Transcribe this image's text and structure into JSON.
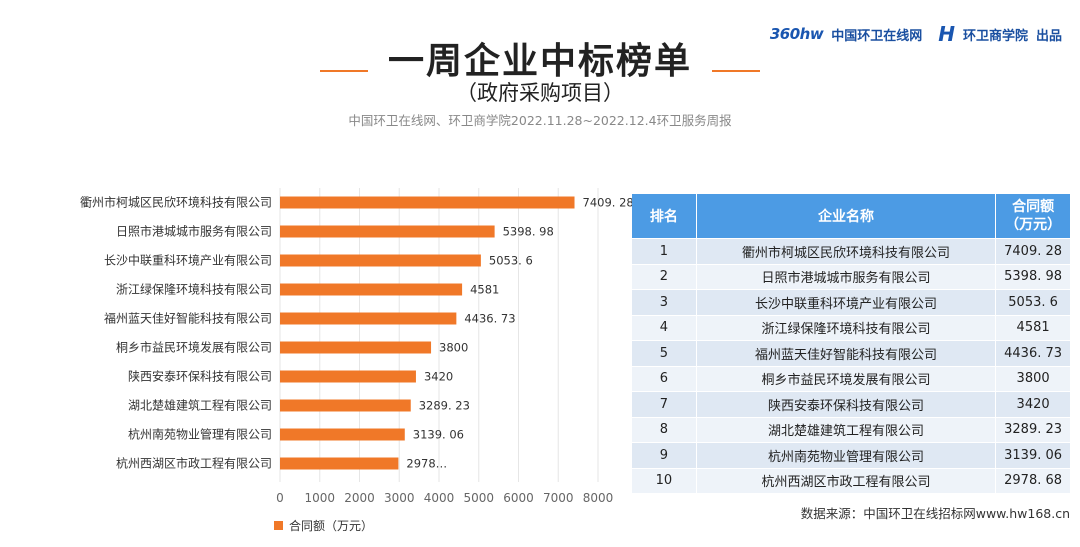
{
  "brand": {
    "logo_text": "360hw",
    "site_name": "中国环卫在线网",
    "school_name": "环卫商学院",
    "produced": "出品"
  },
  "header": {
    "title": "一周企业中标榜单",
    "subtitle": "（政府采购项目）",
    "source_line": "中国环卫在线网、环卫商学院2022.11.28~2022.12.4环卫服务周报"
  },
  "table": {
    "headers": [
      "排名",
      "企业名称",
      "合同额\n（万元）"
    ],
    "rows": [
      [
        "1",
        "衢州市柯城区民欣环境科技有限公司",
        "7409. 28"
      ],
      [
        "2",
        "日照市港城城市服务有限公司",
        "5398. 98"
      ],
      [
        "3",
        "长沙中联重科环境产业有限公司",
        "5053. 6"
      ],
      [
        "4",
        "浙江绿保隆环境科技有限公司",
        "4581"
      ],
      [
        "5",
        "福州蓝天佳好智能科技有限公司",
        "4436. 73"
      ],
      [
        "6",
        "桐乡市益民环境发展有限公司",
        "3800"
      ],
      [
        "7",
        "陕西安泰环保科技有限公司",
        "3420"
      ],
      [
        "8",
        "湖北楚雄建筑工程有限公司",
        "3289. 23"
      ],
      [
        "9",
        "杭州南苑物业管理有限公司",
        "3139. 06"
      ],
      [
        "10",
        "杭州西湖区市政工程有限公司",
        "2978. 68"
      ]
    ]
  },
  "footnote": "数据来源：中国环卫在线招标网www.hw168.cn",
  "chart_data": {
    "type": "bar",
    "orientation": "horizontal",
    "categories": [
      "衢州市柯城区民欣环境科技有限公司",
      "日照市港城城市服务有限公司",
      "长沙中联重科环境产业有限公司",
      "浙江绿保隆环境科技有限公司",
      "福州蓝天佳好智能科技有限公司",
      "桐乡市益民环境发展有限公司",
      "陕西安泰环保科技有限公司",
      "湖北楚雄建筑工程有限公司",
      "杭州南苑物业管理有限公司",
      "杭州西湖区市政工程有限公司"
    ],
    "values": [
      7409.28,
      5398.98,
      5053.6,
      4581,
      4436.73,
      3800,
      3420,
      3289.23,
      3139.06,
      2978.68
    ],
    "value_labels": [
      "7409. 28",
      "5398. 98",
      "5053. 6",
      "4581",
      "4436. 73",
      "3800",
      "3420",
      "3289. 23",
      "3139. 06",
      "2978…"
    ],
    "series_name": "合同额（万元）",
    "xlim": [
      0,
      8000
    ],
    "xticks": [
      0,
      1000,
      2000,
      3000,
      4000,
      5000,
      6000,
      7000,
      8000
    ],
    "grid": true,
    "legend": "bottom-left",
    "bar_color": "#f07828"
  }
}
